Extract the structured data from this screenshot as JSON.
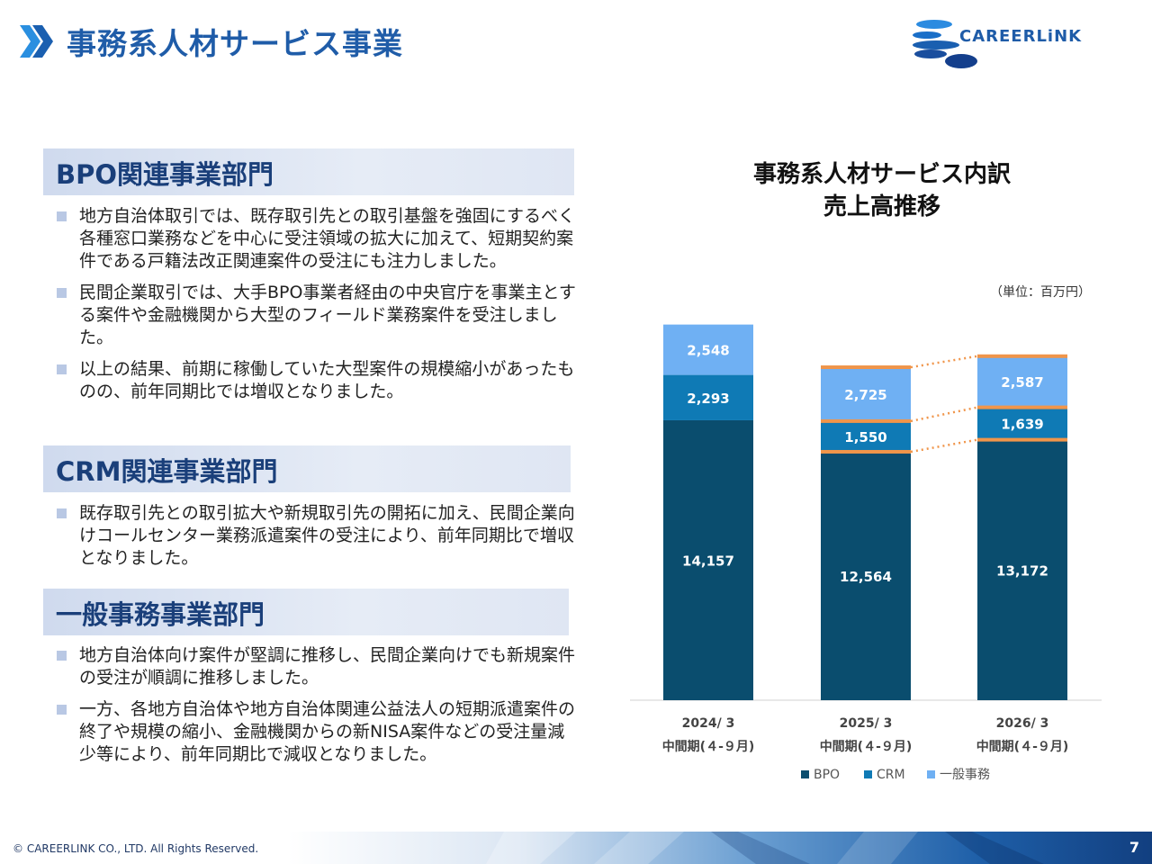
{
  "header": {
    "title": "事務系人材サービス事業",
    "logo_text": "CAREERLiNK"
  },
  "sections": [
    {
      "heading": "BPO関連事業部門",
      "bullets": [
        "地方自治体取引では、既存取引先との取引基盤を強固にするべく各種窓口業務などを中心に受注領域の拡大に加えて、短期契約案件である戸籍法改正関連案件の受注にも注力しました。",
        "民間企業取引では、大手BPO事業者経由の中央官庁を事業主とする案件や金融機関から大型のフィールド業務案件を受注しました。",
        "以上の結果、前期に稼働していた大型案件の規模縮小があったものの、前年同期比では増収となりました。"
      ]
    },
    {
      "heading": "CRM関連事業部門",
      "bullets": [
        "既存取引先との取引拡大や新規取引先の開拓に加え、民間企業向けコールセンター業務派遣案件の受注により、前年同期比で増収となりました。"
      ]
    },
    {
      "heading": "一般事務事業部門",
      "bullets": [
        "地方自治体向け案件が堅調に推移し、民間企業向けでも新規案件の受注が順調に推移しました。",
        "一方、各地方自治体や地方自治体関連公益法人の短期派遣案件の終了や規模の縮小、金融機関からの新NISA案件などの受注量減少等により、前年同期比で減収となりました。"
      ]
    }
  ],
  "chart_data": {
    "type": "bar",
    "stacked": true,
    "title_lines": [
      "事務系人材サービス内訳",
      "売上高推移"
    ],
    "unit": "（単位：百万円）",
    "categories": [
      [
        "2024/ 3",
        "中間期(４-９月)"
      ],
      [
        "2025/ 3",
        "中間期(４-９月)"
      ],
      [
        "2026/ 3",
        "中間期(４-９月)"
      ]
    ],
    "series": [
      {
        "name": "BPO",
        "values": [
          14157,
          12564,
          13172
        ]
      },
      {
        "name": "CRM",
        "values": [
          2293,
          1550,
          1639
        ]
      },
      {
        "name": "一般事務",
        "values": [
          2548,
          2725,
          2587
        ]
      }
    ],
    "legend_position": "bottom",
    "colors": {
      "BPO": "#0a4d6e",
      "CRM": "#0f7ab5",
      "一般事務": "#6fb0f3",
      "separator": "#f0954a"
    }
  },
  "footer": {
    "copyright": "© CAREERLINK CO., LTD. All Rights Reserved.",
    "page_number": "7"
  }
}
